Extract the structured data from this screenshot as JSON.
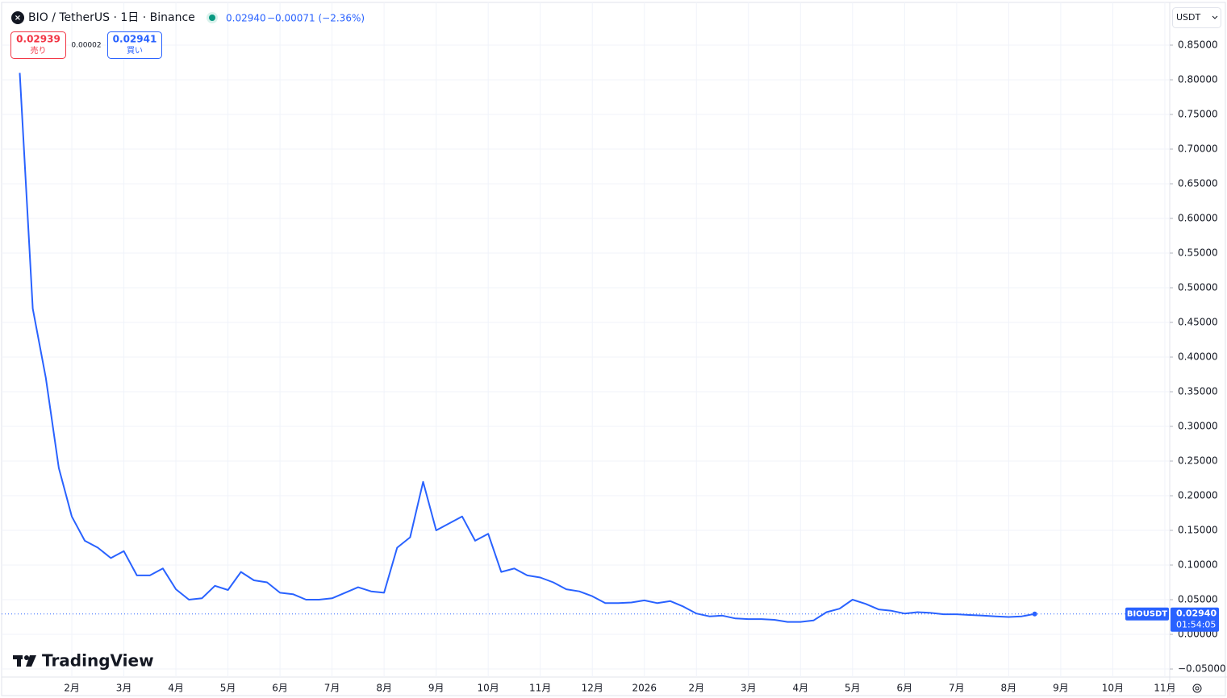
{
  "header": {
    "symbol": "BIO / TetherUS · 1日 · Binance",
    "price": "0.02940",
    "change": "−0.00071 (−2.36%)"
  },
  "trade": {
    "sell_price": "0.02939",
    "sell_label": "売り",
    "spread": "0.00002",
    "buy_price": "0.02941",
    "buy_label": "買い"
  },
  "currency": "USDT",
  "brand": "TradingView",
  "chart_data": {
    "type": "line",
    "categories": [
      null,
      null,
      null,
      null,
      "2月",
      null,
      null,
      null,
      "3月",
      null,
      null,
      null,
      "4月",
      null,
      null,
      null,
      "5月",
      null,
      null,
      null,
      "6月",
      null,
      null,
      null,
      "7月",
      null,
      null,
      null,
      "8月",
      null,
      null,
      null,
      "9月",
      null,
      null,
      null,
      "10月",
      null,
      null,
      null,
      "11月",
      null,
      null,
      null,
      "12月",
      null,
      null,
      null,
      "2026",
      null,
      null,
      null,
      "2月",
      null,
      null,
      null,
      "3月",
      null,
      null,
      null,
      "4月",
      null,
      null,
      null,
      "5月",
      null,
      null,
      null,
      "6月",
      null,
      null,
      null,
      "7月",
      null,
      null,
      null,
      "8月",
      null,
      null,
      null,
      "9月",
      null,
      null,
      null,
      "10月",
      null,
      null,
      null,
      "11月"
    ],
    "series": [
      {
        "name": "BIOUSDT",
        "color": "#2962ff",
        "values": [
          0.81,
          0.47,
          0.37,
          0.24,
          0.17,
          0.135,
          0.125,
          0.11,
          0.12,
          0.085,
          0.085,
          0.095,
          0.065,
          0.05,
          0.052,
          0.07,
          0.064,
          0.09,
          0.078,
          0.075,
          0.06,
          0.058,
          0.05,
          0.05,
          0.052,
          0.06,
          0.068,
          0.062,
          0.06,
          0.125,
          0.14,
          0.22,
          0.15,
          0.16,
          0.17,
          0.135,
          0.145,
          0.09,
          0.095,
          0.085,
          0.082,
          0.075,
          0.065,
          0.062,
          0.055,
          0.045,
          0.045,
          0.046,
          0.049,
          0.045,
          0.048,
          0.04,
          0.03,
          0.026,
          0.027,
          0.023,
          0.022,
          0.022,
          0.021,
          0.018,
          0.018,
          0.02,
          0.032,
          0.037,
          0.05,
          0.044,
          0.036,
          0.034,
          0.03,
          0.032,
          0.031,
          0.029,
          0.029,
          0.028,
          0.027,
          0.026,
          0.025,
          0.026,
          0.0294,
          null,
          null,
          null,
          null,
          null,
          null,
          null,
          null,
          null,
          null
        ]
      }
    ],
    "last_price_label": "0.02940",
    "countdown": "01:54:05",
    "ylim": [
      -0.0674,
      0.9093
    ],
    "yticks": [
      {
        "value": -0.05,
        "label": "−0.05000"
      },
      {
        "value": 0,
        "label": "0.00000"
      },
      {
        "value": 0.05,
        "label": "0.05000"
      },
      {
        "value": 0.1,
        "label": "0.10000"
      },
      {
        "value": 0.15,
        "label": "0.15000"
      },
      {
        "value": 0.2,
        "label": "0.20000"
      },
      {
        "value": 0.25,
        "label": "0.25000"
      },
      {
        "value": 0.3,
        "label": "0.30000"
      },
      {
        "value": 0.35,
        "label": "0.35000"
      },
      {
        "value": 0.4,
        "label": "0.40000"
      },
      {
        "value": 0.45,
        "label": "0.45000"
      },
      {
        "value": 0.5,
        "label": "0.50000"
      },
      {
        "value": 0.55,
        "label": "0.55000"
      },
      {
        "value": 0.6,
        "label": "0.60000"
      },
      {
        "value": 0.65,
        "label": "0.65000"
      },
      {
        "value": 0.7,
        "label": "0.70000"
      },
      {
        "value": 0.75,
        "label": "0.75000"
      },
      {
        "value": 0.8,
        "label": "0.80000"
      },
      {
        "value": 0.85,
        "label": "0.85000"
      }
    ],
    "grid": true
  }
}
